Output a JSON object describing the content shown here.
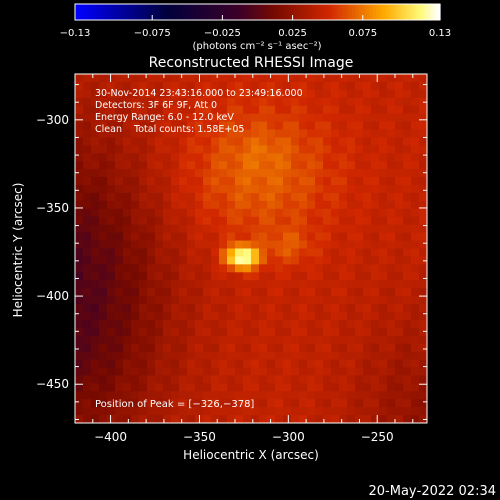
{
  "chart_data": {
    "type": "heatmap",
    "title": "Reconstructed RHESSI Image",
    "xlabel": "Heliocentric X (arcsec)",
    "ylabel": "Heliocentric Y (arcsec)",
    "xlim": [
      -420,
      -222
    ],
    "ylim": [
      -472,
      -274
    ],
    "x_ticks": [
      -400,
      -350,
      -300,
      -250
    ],
    "y_ticks": [
      -300,
      -350,
      -400,
      -450
    ],
    "x_tick_labels": [
      "−400",
      "−350",
      "−300",
      "−250"
    ],
    "y_tick_labels": [
      "−300",
      "−350",
      "−400",
      "−450"
    ],
    "colorbar": {
      "range": [
        -0.13,
        0.13
      ],
      "ticks": [
        -0.13,
        -0.075,
        -0.025,
        0.025,
        0.075,
        0.13
      ],
      "tick_labels": [
        "−0.13",
        "−0.075",
        "−0.025",
        "0.025",
        "0.075",
        "0.13"
      ],
      "unit_label": "(photons cm⁻² s⁻¹ asec⁻²)"
    },
    "annotations": [
      "30-Nov-2014 23:43:16.000 to 23:49:16.000",
      "Detectors: 3F 6F 9F, Att 0",
      "Energy Range: 6.0 - 12.0 keV",
      "Clean    Total counts: 1.58E+05"
    ],
    "peak_label": "Position of Peak = [−326,−378]",
    "peak": {
      "x": -326,
      "y": -378,
      "value": 0.13
    },
    "background_level": 0.045,
    "secondary_sources": [
      {
        "x": -300,
        "y": -372,
        "value": 0.06
      },
      {
        "x": -315,
        "y": -318,
        "value": 0.05
      }
    ],
    "footer_date": "20‐May‐2022 02:34"
  }
}
